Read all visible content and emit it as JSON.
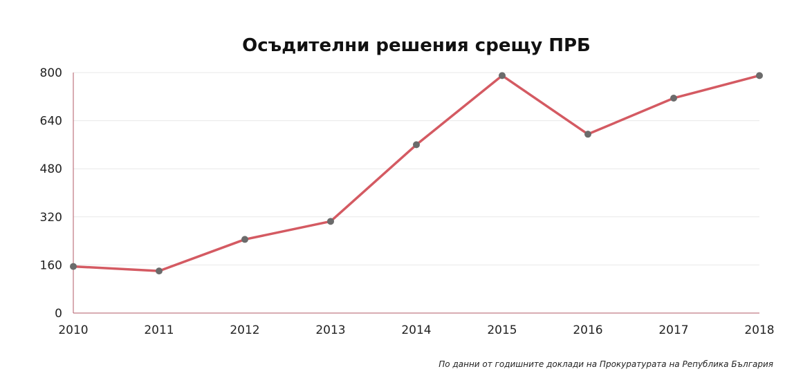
{
  "chart_data": {
    "type": "line",
    "title": "Осъдителни решения срещу ПРБ",
    "xlabel": "",
    "ylabel": "",
    "categories": [
      "2010",
      "2011",
      "2012",
      "2013",
      "2014",
      "2015",
      "2016",
      "2017",
      "2018"
    ],
    "series": [
      {
        "values": [
          155,
          140,
          245,
          305,
          560,
          790,
          595,
          715,
          790
        ]
      }
    ],
    "ylim": [
      0,
      800
    ],
    "yticks": [
      "0",
      "160",
      "320",
      "480",
      "640",
      "800"
    ],
    "grid": true,
    "legend": "none",
    "line_color": "#d45a62",
    "marker_color": "#6b6b6b",
    "axis_color": "#b05a66",
    "grid_color": "#e8e8e8"
  },
  "source_note": "По данни от годишните доклади на Прокуратурата на Република България"
}
